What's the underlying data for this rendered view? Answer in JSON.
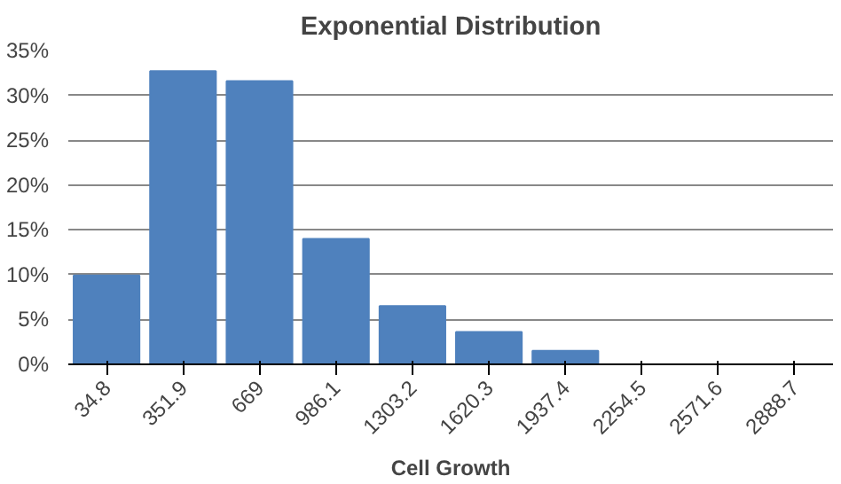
{
  "chart_data": {
    "type": "bar",
    "title": "Exponential Distribution",
    "xlabel": "Cell Growth",
    "categories": [
      "34.8",
      "351.9",
      "669",
      "986.1",
      "1303.2",
      "1620.3",
      "1937.4",
      "2254.5",
      "2571.6",
      "2888.7"
    ],
    "values": [
      9.9,
      32.7,
      31.6,
      14.0,
      6.5,
      3.6,
      1.5,
      0,
      0,
      0
    ],
    "color": "#4f81bd",
    "ylim": [
      0,
      35
    ],
    "yticks": [
      {
        "value": 0,
        "label": "0%"
      },
      {
        "value": 5,
        "label": "5%"
      },
      {
        "value": 10,
        "label": "10%"
      },
      {
        "value": 15,
        "label": "15%"
      },
      {
        "value": 20,
        "label": "20%"
      },
      {
        "value": 25,
        "label": "25%"
      },
      {
        "value": 30,
        "label": "30%"
      },
      {
        "value": 35,
        "label": "35%"
      }
    ],
    "grid": "y"
  }
}
